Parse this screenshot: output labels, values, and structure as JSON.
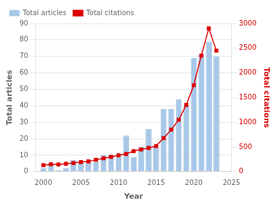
{
  "chart_data": {
    "type": "bar",
    "xlabel": "Year",
    "ylabel": "Total articles",
    "y2label": "Total citations",
    "x": [
      2000,
      2001,
      2002,
      2003,
      2004,
      2005,
      2006,
      2007,
      2008,
      2009,
      2010,
      2011,
      2012,
      2013,
      2014,
      2015,
      2016,
      2017,
      2018,
      2019,
      2020,
      2021,
      2022,
      2023
    ],
    "xlim": [
      1999,
      2025
    ],
    "xticks": [
      2000,
      2005,
      2010,
      2015,
      2020,
      2025
    ],
    "ylim": [
      0,
      90
    ],
    "yticks": [
      0,
      10,
      20,
      30,
      40,
      50,
      60,
      70,
      80,
      90
    ],
    "y2lim": [
      0,
      3000
    ],
    "y2ticks": [
      0,
      500,
      1000,
      1500,
      2000,
      2500,
      3000
    ],
    "grid": true,
    "legend": "upper left",
    "series": [
      {
        "name": "Total articles",
        "type": "bar",
        "color": "#a8c8e8",
        "values": [
          2,
          5,
          1,
          2,
          7,
          6,
          6,
          6,
          10,
          10,
          9,
          22,
          9,
          15,
          26,
          15,
          38,
          38,
          44,
          40,
          69,
          71,
          79,
          70
        ]
      },
      {
        "name": "Total citations",
        "type": "line",
        "color": "#dd0000",
        "marker": "square",
        "axis": "y2",
        "values": [
          130,
          150,
          145,
          160,
          175,
          195,
          210,
          240,
          270,
          300,
          330,
          360,
          415,
          450,
          480,
          520,
          680,
          850,
          1050,
          1350,
          1750,
          2350,
          2900,
          2450
        ]
      }
    ]
  }
}
